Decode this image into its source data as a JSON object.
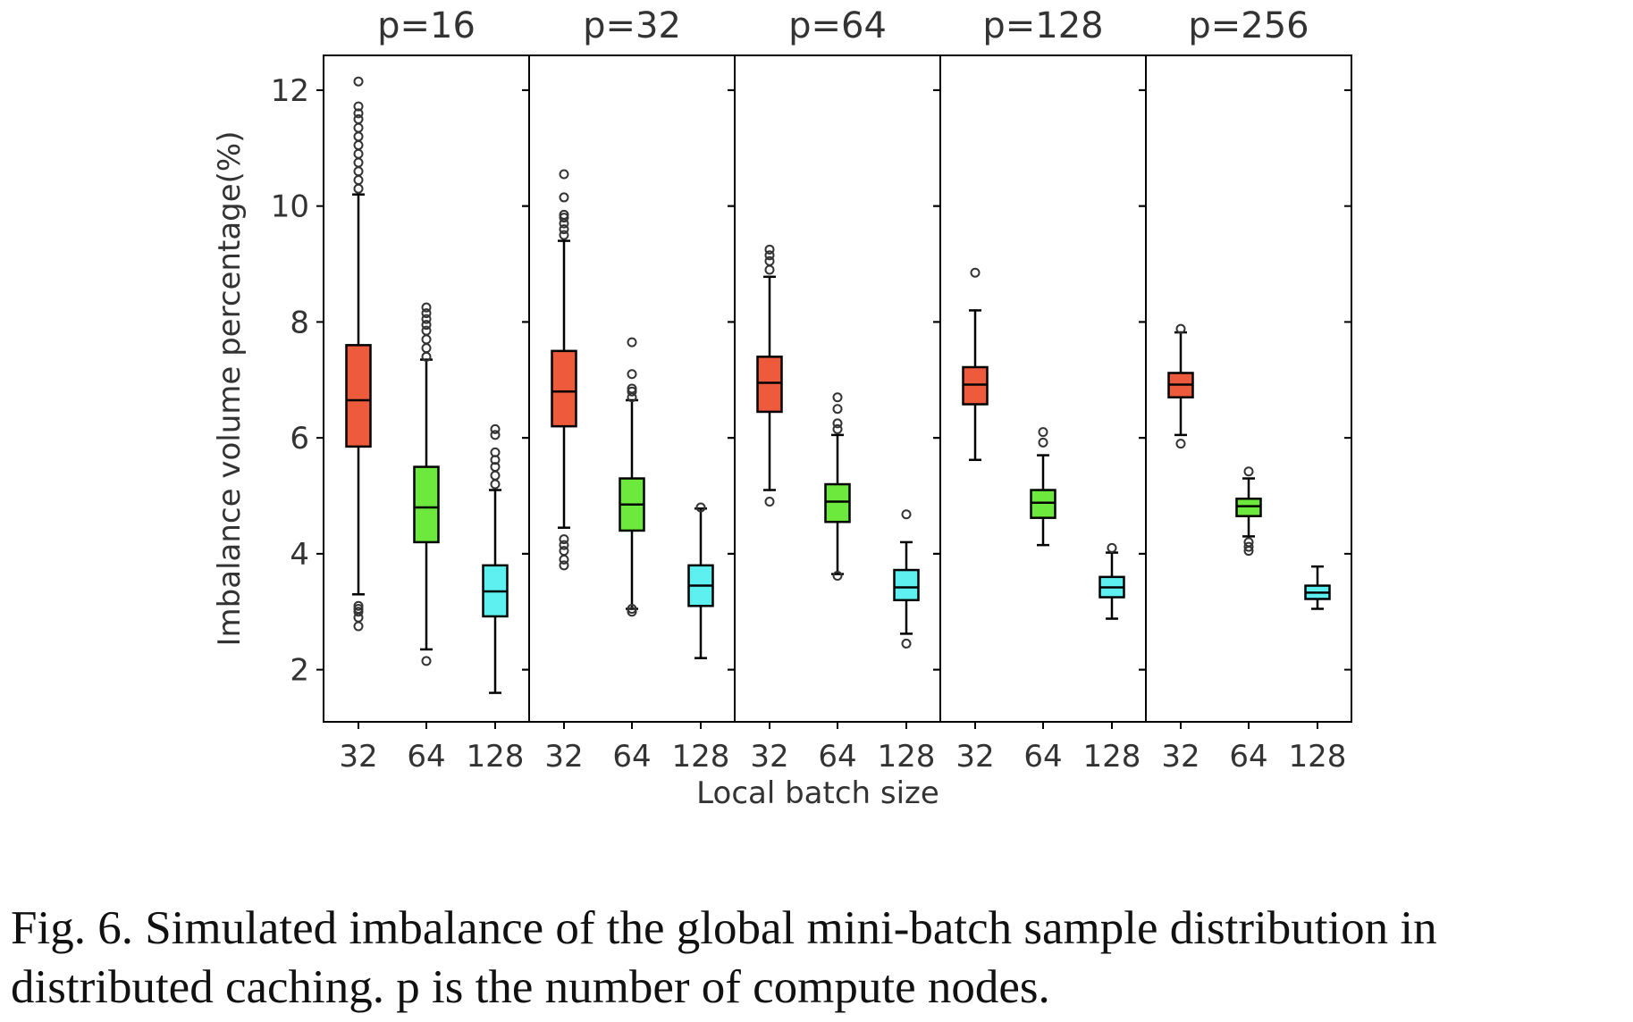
{
  "figure": {
    "caption_line1": "Fig. 6.  Simulated imbalance of the global mini-batch sample distribution in",
    "caption_line2": "distributed caching. p is the number of compute nodes."
  },
  "chart_data": {
    "type": "boxplot",
    "xlabel": "Local batch size",
    "ylabel": "Imbalance volume percentage(%)",
    "ylim": [
      1.1,
      12.6
    ],
    "yticks": [
      2,
      4,
      6,
      8,
      10,
      12
    ],
    "categories": [
      "32",
      "64",
      "128"
    ],
    "category_colors": [
      "#ee5a3c",
      "#6de83c",
      "#5ef0f0"
    ],
    "panels": [
      {
        "title": "p=16",
        "boxes": [
          {
            "category": "32",
            "whisker_low": 3.3,
            "q1": 5.85,
            "median": 6.65,
            "q3": 7.6,
            "whisker_high": 10.2,
            "outliers": [
              2.75,
              2.9,
              3.0,
              3.05,
              3.1,
              10.3,
              10.45,
              10.6,
              10.75,
              10.9,
              11.05,
              11.2,
              11.35,
              11.5,
              11.6,
              11.72,
              12.15
            ]
          },
          {
            "category": "64",
            "whisker_low": 2.35,
            "q1": 4.2,
            "median": 4.8,
            "q3": 5.5,
            "whisker_high": 7.35,
            "outliers": [
              2.15,
              7.4,
              7.55,
              7.7,
              7.85,
              7.95,
              8.05,
              8.15,
              8.25
            ]
          },
          {
            "category": "128",
            "whisker_low": 1.6,
            "q1": 2.92,
            "median": 3.35,
            "q3": 3.8,
            "whisker_high": 5.1,
            "outliers": [
              5.2,
              5.35,
              5.5,
              5.62,
              5.75,
              6.05,
              6.15
            ]
          }
        ]
      },
      {
        "title": "p=32",
        "boxes": [
          {
            "category": "32",
            "whisker_low": 4.45,
            "q1": 6.2,
            "median": 6.8,
            "q3": 7.5,
            "whisker_high": 9.4,
            "outliers": [
              3.8,
              3.9,
              4.05,
              4.15,
              4.25,
              9.5,
              9.6,
              9.7,
              9.8,
              9.85,
              10.15,
              10.55
            ]
          },
          {
            "category": "64",
            "whisker_low": 3.05,
            "q1": 4.4,
            "median": 4.85,
            "q3": 5.3,
            "whisker_high": 6.65,
            "outliers": [
              3.0,
              3.05,
              6.7,
              6.8,
              6.85,
              7.1,
              7.65
            ]
          },
          {
            "category": "128",
            "whisker_low": 2.2,
            "q1": 3.1,
            "median": 3.45,
            "q3": 3.8,
            "whisker_high": 4.78,
            "outliers": [
              4.8
            ]
          }
        ]
      },
      {
        "title": "p=64",
        "boxes": [
          {
            "category": "32",
            "whisker_low": 5.1,
            "q1": 6.45,
            "median": 6.95,
            "q3": 7.4,
            "whisker_high": 8.78,
            "outliers": [
              4.9,
              8.9,
              9.05,
              9.15,
              9.25
            ]
          },
          {
            "category": "64",
            "whisker_low": 3.65,
            "q1": 4.55,
            "median": 4.9,
            "q3": 5.2,
            "whisker_high": 6.05,
            "outliers": [
              3.62,
              6.15,
              6.25,
              6.5,
              6.7
            ]
          },
          {
            "category": "128",
            "whisker_low": 2.62,
            "q1": 3.2,
            "median": 3.42,
            "q3": 3.72,
            "whisker_high": 4.2,
            "outliers": [
              2.45,
              4.68
            ]
          }
        ]
      },
      {
        "title": "p=128",
        "boxes": [
          {
            "category": "32",
            "whisker_low": 5.62,
            "q1": 6.58,
            "median": 6.92,
            "q3": 7.22,
            "whisker_high": 8.2,
            "outliers": [
              8.85
            ]
          },
          {
            "category": "64",
            "whisker_low": 4.15,
            "q1": 4.62,
            "median": 4.88,
            "q3": 5.1,
            "whisker_high": 5.7,
            "outliers": [
              5.92,
              6.1
            ]
          },
          {
            "category": "128",
            "whisker_low": 2.88,
            "q1": 3.25,
            "median": 3.42,
            "q3": 3.6,
            "whisker_high": 4.02,
            "outliers": [
              4.1
            ]
          }
        ]
      },
      {
        "title": "p=256",
        "boxes": [
          {
            "category": "32",
            "whisker_low": 6.05,
            "q1": 6.7,
            "median": 6.92,
            "q3": 7.12,
            "whisker_high": 7.82,
            "outliers": [
              5.9,
              7.88
            ]
          },
          {
            "category": "64",
            "whisker_low": 4.3,
            "q1": 4.65,
            "median": 4.82,
            "q3": 4.95,
            "whisker_high": 5.3,
            "outliers": [
              4.05,
              4.12,
              4.2,
              5.42
            ]
          },
          {
            "category": "128",
            "whisker_low": 3.05,
            "q1": 3.22,
            "median": 3.33,
            "q3": 3.45,
            "whisker_high": 3.78,
            "outliers": []
          }
        ]
      }
    ]
  }
}
